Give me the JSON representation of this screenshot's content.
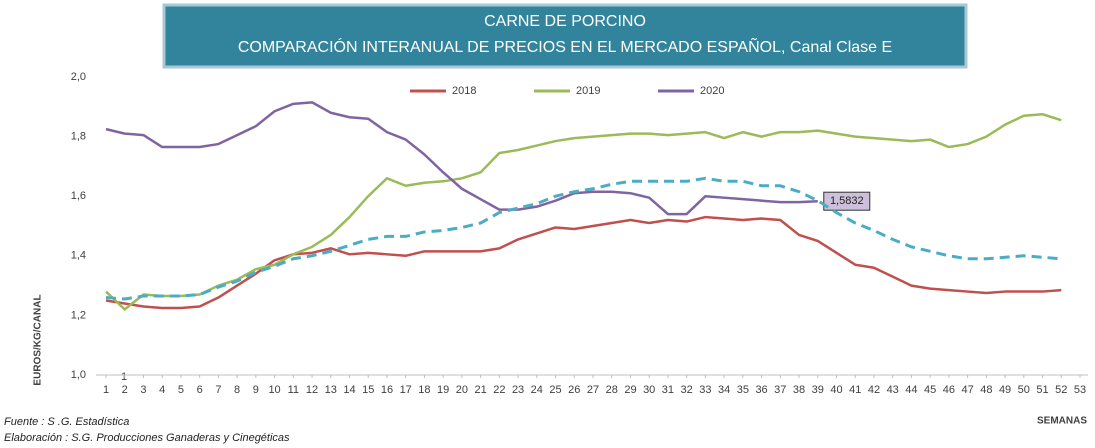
{
  "chart_data": {
    "type": "line",
    "title": "CARNE DE PORCINO",
    "subtitle": "COMPARACIÓN INTERANUAL DE PRECIOS EN EL MERCADO ESPAÑOL, Canal Clase E",
    "y_label": "EUROS/KG/CANAL",
    "x_label": "SEMANAS",
    "x_note": "1",
    "source": "Fuente :  S .G. Estadística",
    "credit": "Elaboración : S.G. Producciones Ganaderas y Cinegéticas",
    "x": [
      1,
      2,
      3,
      4,
      5,
      6,
      7,
      8,
      9,
      10,
      11,
      12,
      13,
      14,
      15,
      16,
      17,
      18,
      19,
      20,
      21,
      22,
      23,
      24,
      25,
      26,
      27,
      28,
      29,
      30,
      31,
      32,
      33,
      34,
      35,
      36,
      37,
      38,
      39,
      40,
      41,
      42,
      43,
      44,
      45,
      46,
      47,
      48,
      49,
      50,
      51,
      52,
      53
    ],
    "xlim": [
      1,
      53
    ],
    "xticks": [
      1,
      2,
      3,
      4,
      5,
      6,
      7,
      8,
      9,
      10,
      11,
      12,
      13,
      14,
      15,
      16,
      17,
      18,
      19,
      20,
      21,
      22,
      23,
      24,
      25,
      26,
      27,
      28,
      29,
      30,
      31,
      32,
      33,
      34,
      35,
      36,
      37,
      38,
      39,
      40,
      41,
      42,
      43,
      44,
      45,
      46,
      47,
      48,
      49,
      50,
      51,
      52,
      53
    ],
    "ylim": [
      1.0,
      2.0
    ],
    "yticks": [
      {
        "value": 1.0,
        "label": "1,0"
      },
      {
        "value": 1.2,
        "label": "1,2"
      },
      {
        "value": 1.4,
        "label": "1,4"
      },
      {
        "value": 1.6,
        "label": "1,6"
      },
      {
        "value": 1.8,
        "label": "1,8"
      },
      {
        "value": 2.0,
        "label": "2,0"
      }
    ],
    "grid": false,
    "legend": "top",
    "series": [
      {
        "name": "2018",
        "color": "#c0504d",
        "values": [
          1.25,
          1.24,
          1.23,
          1.225,
          1.225,
          1.23,
          1.26,
          1.3,
          1.34,
          1.385,
          1.405,
          1.41,
          1.425,
          1.405,
          1.41,
          1.405,
          1.4,
          1.415,
          1.415,
          1.415,
          1.415,
          1.425,
          1.455,
          1.475,
          1.495,
          1.49,
          1.5,
          1.51,
          1.52,
          1.51,
          1.52,
          1.515,
          1.53,
          1.525,
          1.52,
          1.525,
          1.52,
          1.47,
          1.45,
          1.41,
          1.37,
          1.36,
          1.33,
          1.3,
          1.29,
          1.285,
          1.28,
          1.275,
          1.28,
          1.28,
          1.28,
          1.285,
          null
        ]
      },
      {
        "name": "2019",
        "color": "#9bbb59",
        "values": [
          1.28,
          1.22,
          1.27,
          1.265,
          1.265,
          1.27,
          1.3,
          1.32,
          1.355,
          1.37,
          1.405,
          1.43,
          1.47,
          1.53,
          1.6,
          1.66,
          1.635,
          1.645,
          1.65,
          1.66,
          1.68,
          1.745,
          1.755,
          1.77,
          1.785,
          1.795,
          1.8,
          1.805,
          1.81,
          1.81,
          1.805,
          1.81,
          1.815,
          1.795,
          1.815,
          1.8,
          1.815,
          1.815,
          1.82,
          1.81,
          1.8,
          1.795,
          1.79,
          1.785,
          1.79,
          1.765,
          1.775,
          1.8,
          1.84,
          1.87,
          1.875,
          1.855,
          null
        ]
      },
      {
        "name": "2020",
        "color": "#8064a2",
        "values": [
          1.825,
          1.81,
          1.805,
          1.765,
          1.765,
          1.765,
          1.775,
          1.805,
          1.835,
          1.885,
          1.91,
          1.915,
          1.88,
          1.865,
          1.86,
          1.815,
          1.79,
          1.74,
          1.68,
          1.625,
          1.59,
          1.555,
          1.555,
          1.565,
          1.585,
          1.61,
          1.615,
          1.615,
          1.61,
          1.595,
          1.54,
          1.54,
          1.6,
          1.595,
          1.59,
          1.585,
          1.58,
          1.58,
          1.5832,
          null,
          null,
          null,
          null,
          null,
          null,
          null,
          null,
          null,
          null,
          null,
          null,
          null,
          null
        ],
        "value_labels": [
          null,
          null,
          null,
          null,
          null,
          null,
          null,
          null,
          null,
          null,
          null,
          null,
          null,
          null,
          null,
          null,
          null,
          null,
          null,
          null,
          null,
          null,
          null,
          null,
          null,
          null,
          null,
          null,
          null,
          null,
          null,
          null,
          null,
          null,
          null,
          null,
          null,
          null,
          "1,5832",
          null,
          null,
          null,
          null,
          null,
          null,
          null,
          null,
          null,
          null,
          null,
          null,
          null,
          null
        ]
      },
      {
        "color": "#4bacc6",
        "dashed": true,
        "values": [
          1.26,
          1.255,
          1.265,
          1.265,
          1.265,
          1.27,
          1.295,
          1.315,
          1.345,
          1.365,
          1.39,
          1.4,
          1.415,
          1.435,
          1.455,
          1.465,
          1.465,
          1.48,
          1.485,
          1.495,
          1.51,
          1.545,
          1.56,
          1.575,
          1.6,
          1.615,
          1.625,
          1.64,
          1.65,
          1.65,
          1.65,
          1.65,
          1.66,
          1.65,
          1.65,
          1.635,
          1.635,
          1.615,
          1.585,
          1.545,
          1.51,
          1.485,
          1.455,
          1.43,
          1.415,
          1.4,
          1.39,
          1.39,
          1.395,
          1.4,
          1.395,
          1.39,
          null
        ]
      }
    ]
  }
}
